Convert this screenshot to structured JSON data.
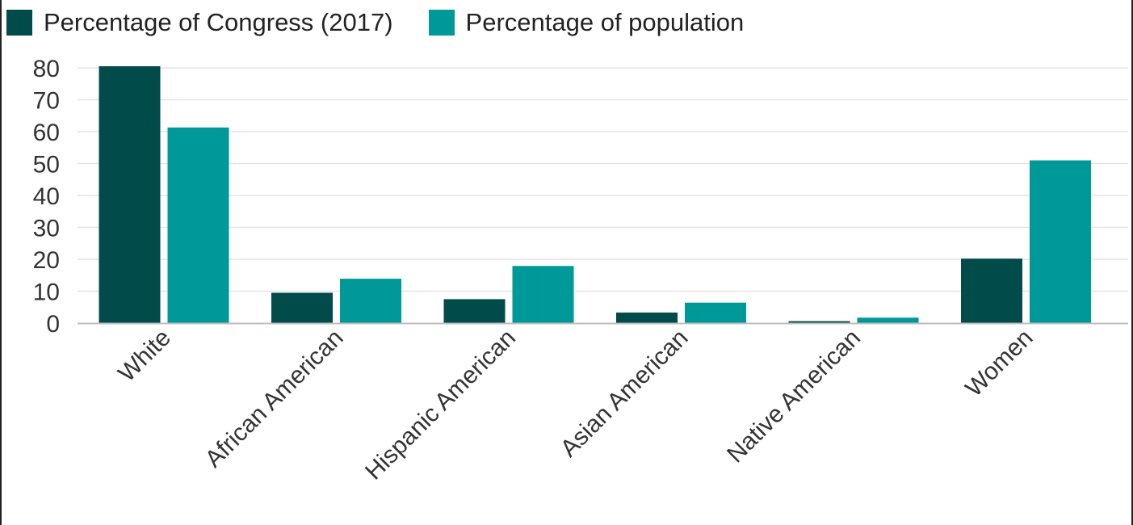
{
  "chart_data": {
    "type": "bar",
    "categories": [
      "White",
      "African American",
      "Hispanic American",
      "Asian American",
      "Native American",
      "Women"
    ],
    "series": [
      {
        "name": "Percentage of Congress (2017)",
        "color": "#024b4b",
        "values": [
          80.5,
          9.5,
          7.5,
          3.3,
          0.6,
          20.2
        ]
      },
      {
        "name": "Percentage of population",
        "color": "#009999",
        "values": [
          61.3,
          13.9,
          17.9,
          6.4,
          1.7,
          51.0
        ]
      }
    ],
    "title": "",
    "xlabel": "",
    "ylabel": "",
    "ylim": [
      0,
      80
    ],
    "yticks": [
      0,
      10,
      20,
      30,
      40,
      50,
      60,
      70,
      80
    ],
    "grid": true,
    "legend_position": "top-left"
  }
}
